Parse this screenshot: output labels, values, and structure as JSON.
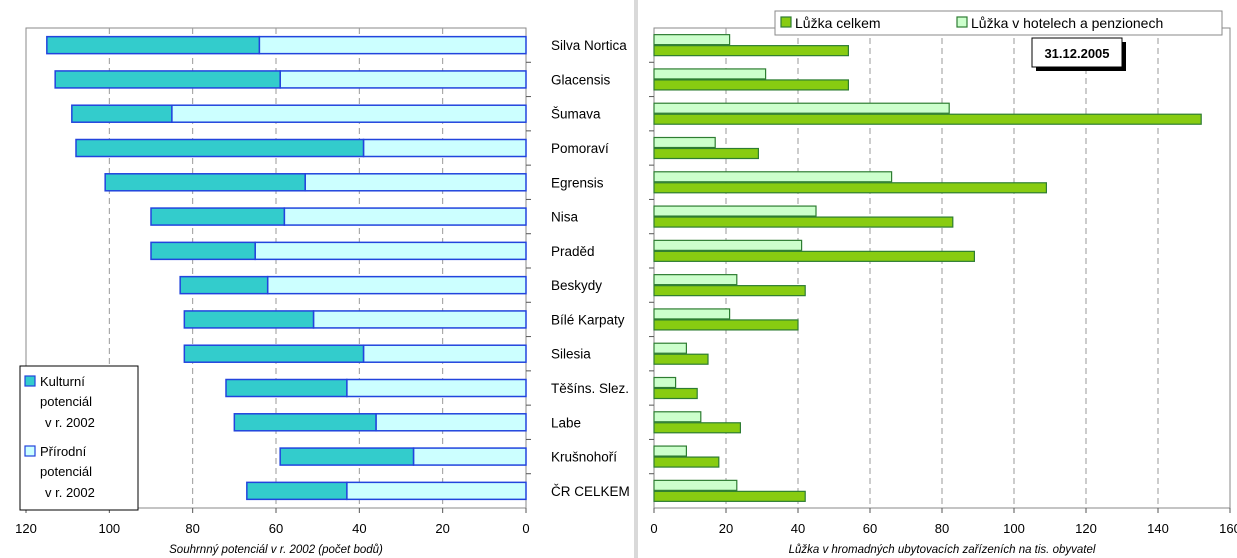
{
  "categories": [
    "Silva Nortica",
    "Glacensis",
    "Šumava",
    "Pomoraví",
    "Egrensis",
    "Nisa",
    "Praděd",
    "Beskydy",
    "Bílé Karpaty",
    "Silesia",
    "Těšíns. Slez.",
    "Labe",
    "Krušnohoří",
    "ČR CELKEM"
  ],
  "colors": {
    "kulturni": "#33CCCC",
    "prirodni": "#CCFFFF",
    "bar_edge": "#2244DD",
    "celkem": "#88CC11",
    "hotely": "#CCFFCC",
    "green_edge": "#2E7D32"
  },
  "chart_data": [
    {
      "type": "bar",
      "orientation": "horizontal",
      "stacked": true,
      "x_reversed": true,
      "categories": [
        "Silva Nortica",
        "Glacensis",
        "Šumava",
        "Pomoraví",
        "Egrensis",
        "Nisa",
        "Praděd",
        "Beskydy",
        "Bílé Karpaty",
        "Silesia",
        "Těšíns. Slez.",
        "Labe",
        "Krušnohoří",
        "ČR CELKEM"
      ],
      "series": [
        {
          "name": "Kulturní potenciál v r. 2002",
          "values": [
            51,
            54,
            24,
            69,
            48,
            32,
            25,
            21,
            31,
            43,
            29,
            34,
            32,
            24
          ]
        },
        {
          "name": "Přírodní potenciál v r. 2002",
          "values": [
            64,
            59,
            85,
            39,
            53,
            58,
            65,
            62,
            51,
            39,
            43,
            36,
            27,
            43
          ]
        }
      ],
      "xlabel": "Souhrnný potenciál v r. 2002 (počet bodů)",
      "ylabel": "",
      "xlim": [
        0,
        120
      ],
      "xticks": [
        120,
        100,
        80,
        60,
        40,
        20,
        0
      ],
      "grid": true,
      "legend": "bottom-left",
      "legend_labels": [
        {
          "lines": [
            "Kulturní",
            "potenciál",
            "v r. 2002"
          ]
        },
        {
          "lines": [
            "Přírodní",
            "potenciál",
            "v r. 2002"
          ]
        }
      ]
    },
    {
      "type": "bar",
      "orientation": "horizontal",
      "categories": [
        "Silva Nortica",
        "Glacensis",
        "Šumava",
        "Pomoraví",
        "Egrensis",
        "Nisa",
        "Praděd",
        "Beskydy",
        "Bílé Karpaty",
        "Silesia",
        "Těšíns. Slez.",
        "Labe",
        "Krušnohoří",
        "ČR CELKEM"
      ],
      "series": [
        {
          "name": "Lůžka celkem",
          "values": [
            54,
            54,
            152,
            29,
            109,
            83,
            89,
            42,
            40,
            15,
            12,
            24,
            18,
            42
          ]
        },
        {
          "name": "Lůžka v hotelech a penzionech",
          "values": [
            21,
            31,
            82,
            17,
            66,
            45,
            41,
            23,
            21,
            9,
            6,
            13,
            9,
            23
          ]
        }
      ],
      "xlabel": "Lůžka v hromadných ubytovacích zařízeních na tis. obyvatel",
      "ylabel": "",
      "xlim": [
        0,
        160
      ],
      "xticks": [
        0,
        20,
        40,
        60,
        80,
        100,
        120,
        140,
        160
      ],
      "grid": true,
      "legend": "top-right",
      "annotation": "31.12.2005"
    }
  ]
}
